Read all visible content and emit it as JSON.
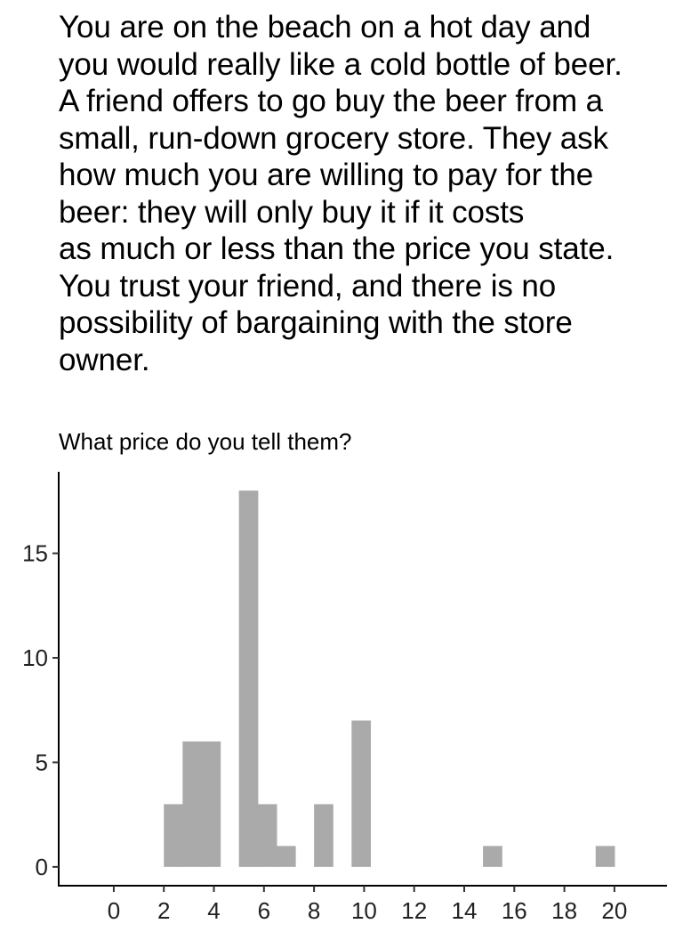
{
  "intro_lines": [
    "You are on the beach on a hot day and",
    "you would really like a cold bottle of beer.",
    "A friend offers to go buy the beer from a",
    "small, run-down grocery store. They ask",
    "how much you are willing to pay for the",
    "beer: they will only buy it if it costs",
    "as much or less than the price you state.",
    "You trust your friend, and there is no",
    "possibility of bargaining with the store",
    "owner."
  ],
  "chart_data": {
    "type": "bar",
    "title": "What price do you tell them?",
    "xlabel": "",
    "ylabel": "",
    "bar_color": "#aaaaaa",
    "bin_width": 0.75,
    "bins": [
      {
        "start": 2.0,
        "count": 3
      },
      {
        "start": 2.75,
        "count": 6
      },
      {
        "start": 3.5,
        "count": 6
      },
      {
        "start": 5.0,
        "count": 18
      },
      {
        "start": 5.75,
        "count": 3
      },
      {
        "start": 6.5,
        "count": 1
      },
      {
        "start": 8.0,
        "count": 3
      },
      {
        "start": 9.5,
        "count": 7
      },
      {
        "start": 14.75,
        "count": 1
      },
      {
        "start": 19.25,
        "count": 1
      }
    ],
    "x_ticks": [
      0,
      2,
      4,
      6,
      8,
      10,
      12,
      14,
      16,
      18,
      20
    ],
    "y_ticks": [
      0,
      5,
      10,
      15
    ],
    "xlim": [
      -2.2,
      22.1
    ],
    "ylim": [
      -0.9,
      18.9
    ],
    "grid": false,
    "legend": "none"
  }
}
